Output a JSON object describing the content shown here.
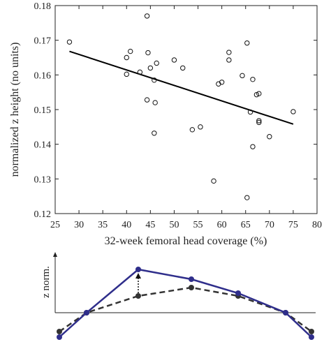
{
  "chart_data": [
    {
      "type": "scatter",
      "xlabel": "32-week femoral head coverage (%)",
      "ylabel": "normalized z height (no units)",
      "xlim": [
        25,
        80
      ],
      "ylim": [
        0.12,
        0.18
      ],
      "xticks": [
        "25",
        "30",
        "35",
        "40",
        "45",
        "50",
        "55",
        "60",
        "65",
        "70",
        "75",
        "80"
      ],
      "yticks": [
        "0.12",
        "0.13",
        "0.14",
        "0.15",
        "0.16",
        "0.17",
        "0.18"
      ],
      "legend": "none",
      "grid": false,
      "marker_color": "#111111",
      "points": [
        {
          "x": 28.0,
          "y": 0.1695
        },
        {
          "x": 40.0,
          "y": 0.165
        },
        {
          "x": 40.8,
          "y": 0.1668
        },
        {
          "x": 40.0,
          "y": 0.1602
        },
        {
          "x": 42.8,
          "y": 0.1608
        },
        {
          "x": 44.3,
          "y": 0.177
        },
        {
          "x": 44.5,
          "y": 0.1664
        },
        {
          "x": 45.0,
          "y": 0.162
        },
        {
          "x": 46.3,
          "y": 0.1634
        },
        {
          "x": 45.8,
          "y": 0.1585
        },
        {
          "x": 44.3,
          "y": 0.1528
        },
        {
          "x": 46.0,
          "y": 0.152
        },
        {
          "x": 45.8,
          "y": 0.1432
        },
        {
          "x": 50.0,
          "y": 0.1643
        },
        {
          "x": 51.8,
          "y": 0.162
        },
        {
          "x": 53.8,
          "y": 0.1442
        },
        {
          "x": 55.5,
          "y": 0.145
        },
        {
          "x": 58.3,
          "y": 0.1294
        },
        {
          "x": 59.3,
          "y": 0.1574
        },
        {
          "x": 60.0,
          "y": 0.1579
        },
        {
          "x": 61.5,
          "y": 0.1665
        },
        {
          "x": 61.5,
          "y": 0.1643
        },
        {
          "x": 64.3,
          "y": 0.1598
        },
        {
          "x": 65.3,
          "y": 0.1692
        },
        {
          "x": 65.3,
          "y": 0.1246
        },
        {
          "x": 66.0,
          "y": 0.1493
        },
        {
          "x": 66.5,
          "y": 0.1587
        },
        {
          "x": 66.5,
          "y": 0.1393
        },
        {
          "x": 67.3,
          "y": 0.1543
        },
        {
          "x": 67.8,
          "y": 0.1546
        },
        {
          "x": 67.8,
          "y": 0.1468
        },
        {
          "x": 67.8,
          "y": 0.1463
        },
        {
          "x": 70.0,
          "y": 0.1422
        },
        {
          "x": 75.0,
          "y": 0.1494
        }
      ],
      "fit_line": {
        "x": [
          28,
          75
        ],
        "y": [
          0.1668,
          0.1458
        ],
        "color": "#000000"
      }
    },
    {
      "type": "line",
      "ylabel": "z norm.",
      "legend": "none",
      "series": [
        {
          "color": "#2f2e8b",
          "style": "solid",
          "y": [
            -0.35,
            0.0,
            0.62,
            0.48,
            0.28,
            0.0,
            -0.35
          ]
        },
        {
          "color": "#333333",
          "style": "dashed",
          "y": [
            -0.27,
            0.0,
            0.24,
            0.36,
            0.24,
            0.0,
            -0.27
          ]
        }
      ],
      "arrow_at_point": 2
    }
  ]
}
